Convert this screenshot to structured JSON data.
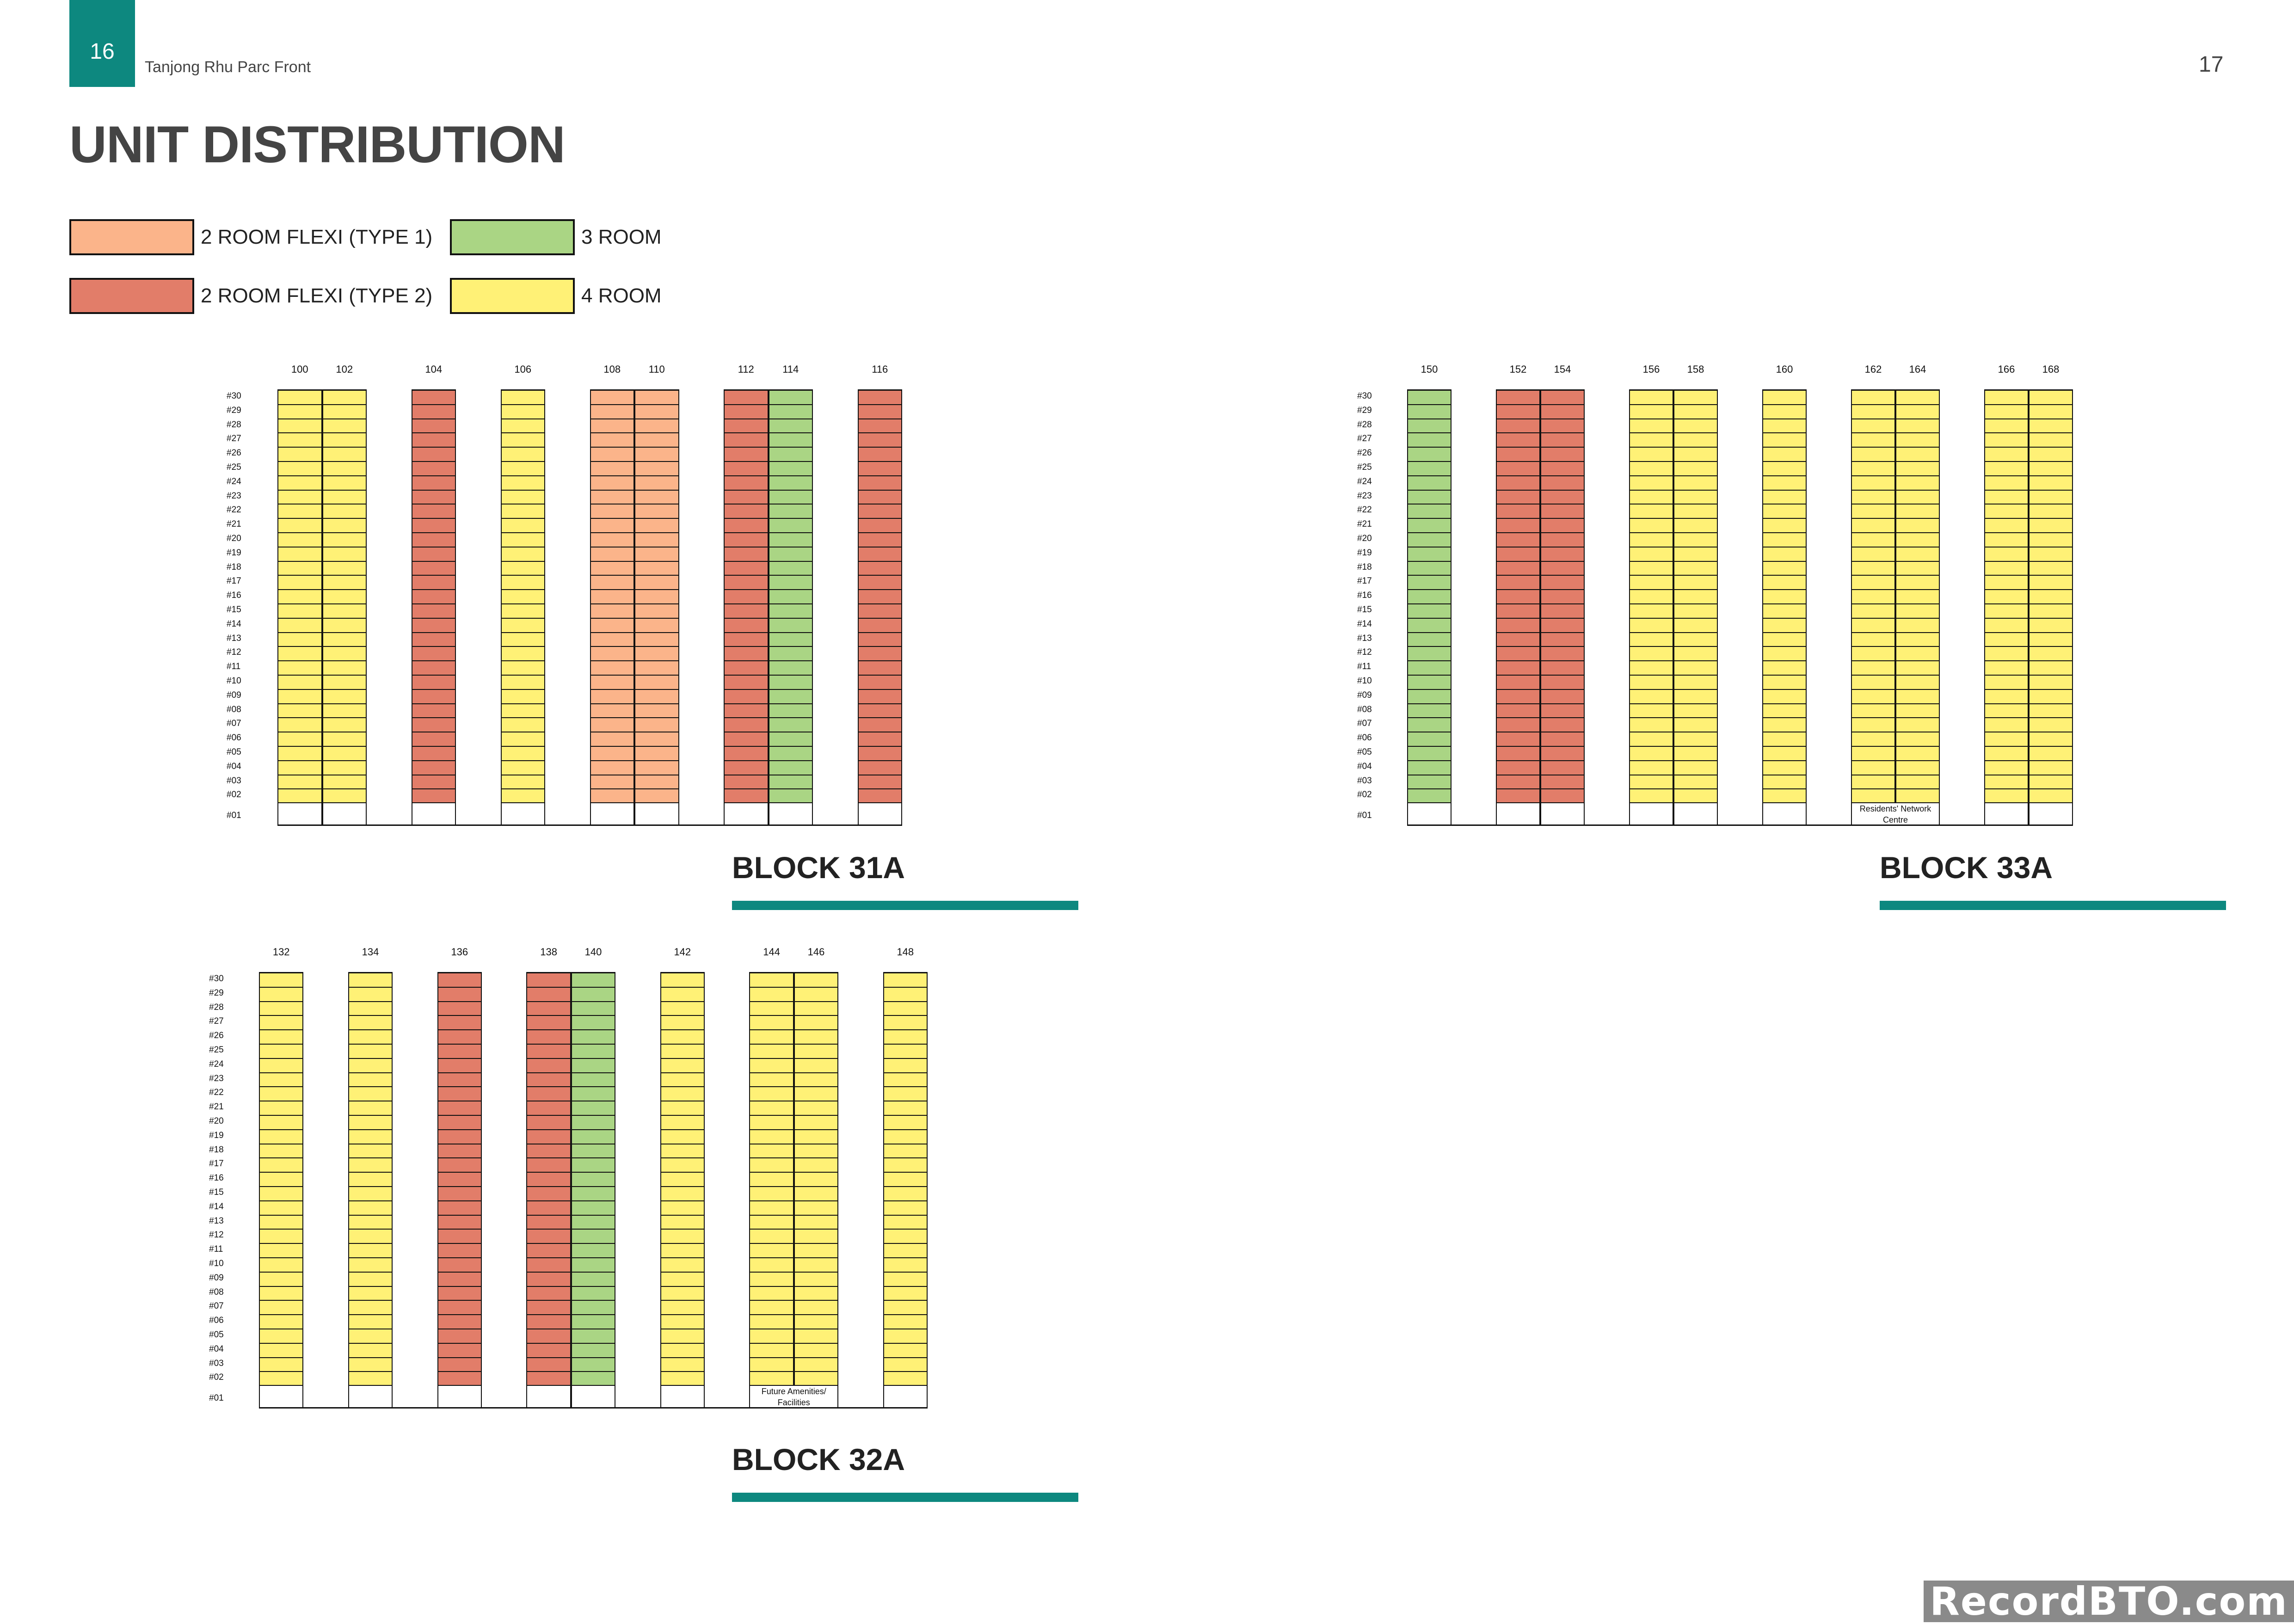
{
  "header": {
    "page_left": "16",
    "doc_name": "Tanjong Rhu Parc Front",
    "page_right": "17",
    "title": "UNIT DISTRIBUTION"
  },
  "colors": {
    "2R1": "#fbb48a",
    "2R2": "#e27d69",
    "3R": "#aad584",
    "4R": "#fff176",
    "accent": "#0d887f"
  },
  "legend": [
    {
      "key": "2R1",
      "label": "2 ROOM FLEXI (TYPE 1)"
    },
    {
      "key": "2R2",
      "label": "2 ROOM FLEXI (TYPE 2)"
    },
    {
      "key": "3R",
      "label": "3 ROOM"
    },
    {
      "key": "4R",
      "label": "4 ROOM"
    }
  ],
  "floors": [
    "#30",
    "#29",
    "#28",
    "#27",
    "#26",
    "#25",
    "#24",
    "#23",
    "#22",
    "#21",
    "#20",
    "#19",
    "#18",
    "#17",
    "#16",
    "#15",
    "#14",
    "#13",
    "#12",
    "#11",
    "#10",
    "#09",
    "#08",
    "#07",
    "#06",
    "#05",
    "#04",
    "#03",
    "#02"
  ],
  "ground_floor": "#01",
  "blocks": [
    {
      "name": "BLOCK 31A",
      "units": [
        {
          "no": "100",
          "type": "4R"
        },
        {
          "no": "102",
          "type": "4R"
        },
        {
          "no": "",
          "type": ""
        },
        {
          "no": "104",
          "type": "2R2"
        },
        {
          "no": "",
          "type": ""
        },
        {
          "no": "106",
          "type": "4R"
        },
        {
          "no": "",
          "type": ""
        },
        {
          "no": "108",
          "type": "2R1"
        },
        {
          "no": "110",
          "type": "2R1"
        },
        {
          "no": "",
          "type": ""
        },
        {
          "no": "112",
          "type": "2R2"
        },
        {
          "no": "114",
          "type": "3R"
        },
        {
          "no": "",
          "type": ""
        },
        {
          "no": "116",
          "type": "2R2"
        }
      ],
      "ground_note": ""
    },
    {
      "name": "BLOCK 33A",
      "units": [
        {
          "no": "150",
          "type": "3R"
        },
        {
          "no": "",
          "type": ""
        },
        {
          "no": "152",
          "type": "2R2"
        },
        {
          "no": "154",
          "type": "2R2"
        },
        {
          "no": "",
          "type": ""
        },
        {
          "no": "156",
          "type": "4R"
        },
        {
          "no": "158",
          "type": "4R"
        },
        {
          "no": "",
          "type": ""
        },
        {
          "no": "160",
          "type": "4R"
        },
        {
          "no": "",
          "type": ""
        },
        {
          "no": "162",
          "type": "4R"
        },
        {
          "no": "164",
          "type": "4R"
        },
        {
          "no": "",
          "type": ""
        },
        {
          "no": "166",
          "type": "4R"
        },
        {
          "no": "168",
          "type": "4R"
        }
      ],
      "ground_note": "Residents' Network Centre"
    },
    {
      "name": "BLOCK 32A",
      "units": [
        {
          "no": "132",
          "type": "4R"
        },
        {
          "no": "",
          "type": ""
        },
        {
          "no": "134",
          "type": "4R"
        },
        {
          "no": "",
          "type": ""
        },
        {
          "no": "136",
          "type": "2R2"
        },
        {
          "no": "",
          "type": ""
        },
        {
          "no": "138",
          "type": "2R2"
        },
        {
          "no": "140",
          "type": "3R"
        },
        {
          "no": "",
          "type": ""
        },
        {
          "no": "142",
          "type": "4R"
        },
        {
          "no": "",
          "type": ""
        },
        {
          "no": "144",
          "type": "4R"
        },
        {
          "no": "146",
          "type": "4R"
        },
        {
          "no": "",
          "type": ""
        },
        {
          "no": "148",
          "type": "4R"
        }
      ],
      "ground_note": "Future Amenities/ Facilities"
    }
  ],
  "watermark": "RecordBTO.com"
}
